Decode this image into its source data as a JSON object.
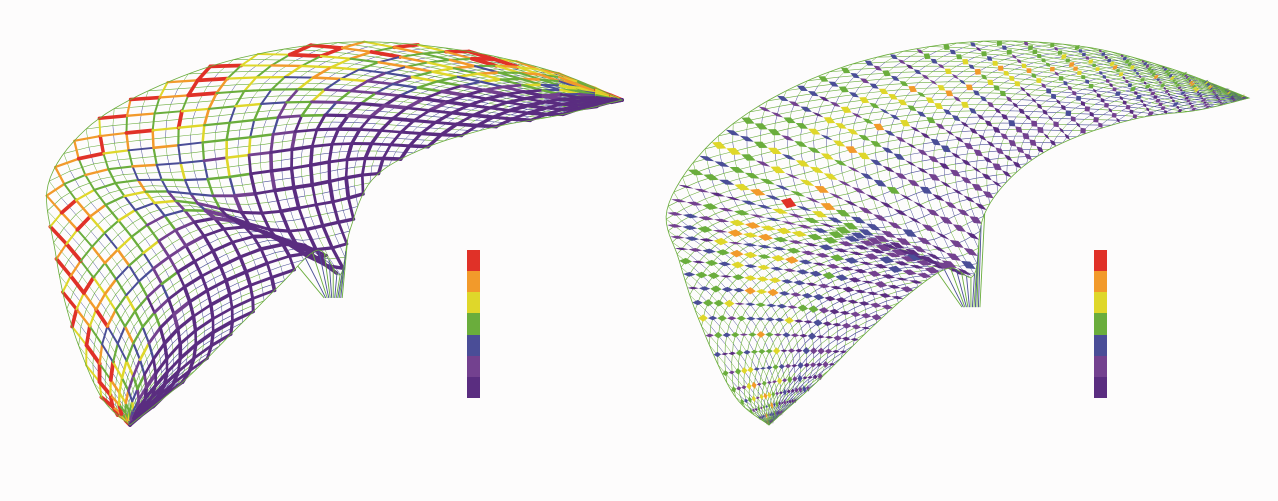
{
  "panels": [
    {
      "id": "left",
      "kind": "force-distribution-grid-shell",
      "member_style": "lines",
      "legend_colors": [
        "#e03128",
        "#f29a2b",
        "#dfd72a",
        "#6aad3c",
        "#4a4d97",
        "#73418f",
        "#5a2d80"
      ]
    },
    {
      "id": "right",
      "kind": "force-distribution-grid-shell",
      "member_style": "lozenges",
      "legend_colors": [
        "#e03128",
        "#f29a2b",
        "#dfd72a",
        "#6aad3c",
        "#4a4d97",
        "#73418f",
        "#5a2d80"
      ]
    }
  ],
  "palette": {
    "red": "#e03128",
    "orange": "#f29a2b",
    "yellow": "#dfd72a",
    "green": "#6aad3c",
    "blue": "#4a4d97",
    "purple": "#73418f",
    "violet": "#5a2d80",
    "background": "#fdfcfc"
  }
}
